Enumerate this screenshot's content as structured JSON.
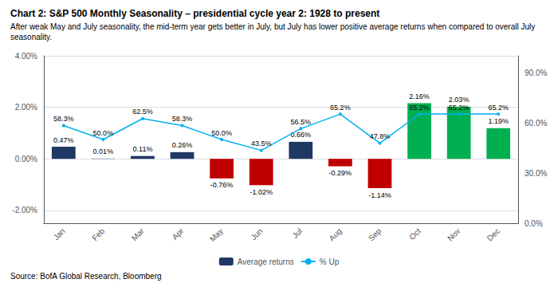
{
  "chart_data": {
    "type": "bar",
    "title": "Chart 2: S&P 500 Monthly Seasonality – presidential cycle year 2: 1928 to present",
    "subtitle": "After weak May and July seasonality, the mid-term year gets better in July, but July has lower positive average returns when compared to overall July seasonality.",
    "source": "Source: BofA Global Research, Bloomberg",
    "categories": [
      "Jan",
      "Feb",
      "Mar",
      "Apr",
      "May",
      "Jun",
      "Jul",
      "Aug",
      "Sep",
      "Oct",
      "Nov",
      "Dec"
    ],
    "series": [
      {
        "name": "Average returns",
        "type": "bar",
        "color": "#1f3864",
        "colors": [
          "#1f3864",
          "#1f3864",
          "#1f3864",
          "#1f3864",
          "#c00000",
          "#c00000",
          "#1f3864",
          "#c00000",
          "#c00000",
          "#00b050",
          "#00b050",
          "#00b050"
        ],
        "values": [
          0.47,
          0.01,
          0.11,
          0.26,
          -0.76,
          -1.02,
          0.66,
          -0.29,
          -1.14,
          2.16,
          2.03,
          1.19
        ],
        "value_labels": [
          "0.47%",
          "0.01%",
          "0.11%",
          "0.26%",
          "-0.76%",
          "-1.02%",
          "0.66%",
          "-0.29%",
          "-1.14%",
          "2.16%",
          "2.03%",
          "1.19%"
        ]
      },
      {
        "name": "% Up",
        "type": "line",
        "axis": "y2",
        "color": "#00b0f0",
        "values": [
          58.3,
          50.0,
          62.5,
          58.3,
          50.0,
          43.5,
          56.5,
          65.2,
          47.8,
          65.2,
          65.2,
          65.2
        ],
        "value_labels": [
          "58.3%",
          "50.0%",
          "62.5%",
          "58.3%",
          "50.0%",
          "43.5%",
          "56.5%",
          "65.2%",
          "47.8%",
          "65.2%",
          "65.2%",
          "65.2%"
        ]
      }
    ],
    "ylim": [
      -2.5,
      4.0
    ],
    "yticks": [
      {
        "value": -2.0,
        "label": "-2.00%"
      },
      {
        "value": 0.0,
        "label": "0.00%"
      },
      {
        "value": 2.0,
        "label": "2.00%"
      },
      {
        "value": 4.0,
        "label": "4.00%"
      }
    ],
    "y2lim": [
      0.0,
      100.0
    ],
    "y2ticks": [
      {
        "value": 0.0,
        "label": "0.0%"
      },
      {
        "value": 30.0,
        "label": "30.0%"
      },
      {
        "value": 60.0,
        "label": "60.0%"
      },
      {
        "value": 90.0,
        "label": "90.0%"
      }
    ],
    "grid": true,
    "legend": "bottom",
    "data_labels": true
  }
}
